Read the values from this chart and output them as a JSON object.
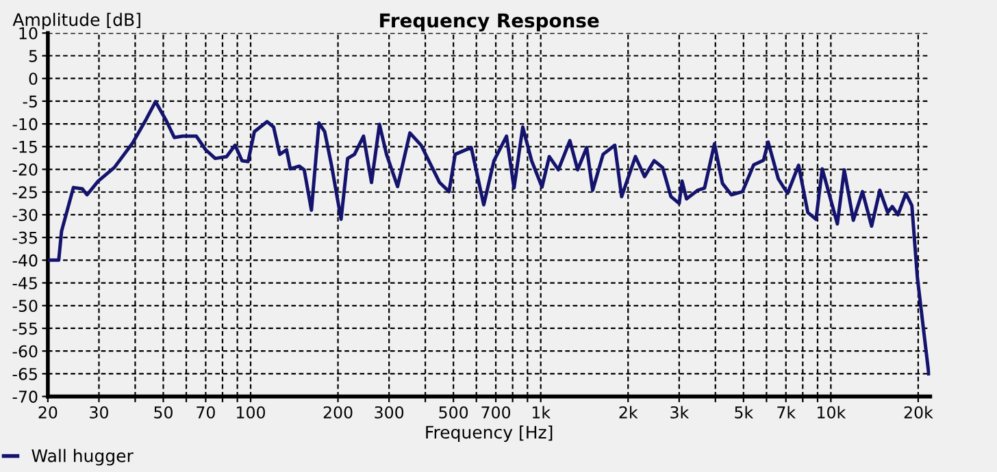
{
  "chart_data": {
    "type": "line",
    "title": "Frequency Response",
    "xlabel": "Frequency [Hz]",
    "ylabel": "Amplitude [dB]",
    "log": "x",
    "grid": true,
    "legend": "bottom left",
    "marker": "none",
    "line_style": "solid",
    "xlim": [
      20,
      22000
    ],
    "ylim": [
      -70,
      10
    ],
    "xticks": [
      20,
      30,
      {
        "value": 40,
        "label": null
      },
      50,
      {
        "value": 60,
        "label": null
      },
      70,
      {
        "value": 80,
        "label": null
      },
      {
        "value": 90,
        "label": null
      },
      100,
      200,
      300,
      {
        "value": 400,
        "label": null
      },
      500,
      {
        "value": 600,
        "label": null
      },
      700,
      {
        "value": 800,
        "label": null
      },
      {
        "value": 900,
        "label": null
      },
      {
        "value": 1000,
        "label": "1k"
      },
      {
        "value": 2000,
        "label": "2k"
      },
      {
        "value": 3000,
        "label": "3k"
      },
      {
        "value": 4000,
        "label": null
      },
      {
        "value": 5000,
        "label": "5k"
      },
      {
        "value": 6000,
        "label": null
      },
      {
        "value": 7000,
        "label": "7k"
      },
      {
        "value": 8000,
        "label": null
      },
      {
        "value": 9000,
        "label": null
      },
      {
        "value": 10000,
        "label": "10k"
      },
      {
        "value": 20000,
        "label": "20k"
      }
    ],
    "yticks": [
      10,
      5,
      0,
      -5,
      -10,
      -15,
      -20,
      -25,
      -30,
      -35,
      -40,
      -45,
      -50,
      -55,
      -60,
      -65,
      -70
    ],
    "series": [
      {
        "name": "Wall hugger",
        "color": "#14146e",
        "x": [
          20,
          21.8,
          22.3,
          24.5,
          26.3,
          27.3,
          29.8,
          33.9,
          39.2,
          43.8,
          47,
          51.2,
          54.6,
          58.3,
          65,
          70,
          75.5,
          82.6,
          88.4,
          93.4,
          98,
          103,
          114,
          120,
          126,
          133,
          137,
          147,
          153,
          162,
          172,
          180,
          190,
          205,
          216,
          228,
          245,
          261,
          278,
          294,
          321,
          354,
          387,
          448,
          483,
          507,
          576,
          636,
          690,
          762,
          809,
          867,
          930,
          1010,
          1070,
          1150,
          1260,
          1340,
          1440,
          1510,
          1640,
          1800,
          1900,
          2120,
          2280,
          2460,
          2630,
          2810,
          3000,
          3070,
          3180,
          3480,
          3670,
          3970,
          4230,
          4540,
          4960,
          5420,
          5860,
          6080,
          6590,
          7090,
          7740,
          8330,
          8890,
          9340,
          10530,
          11120,
          11950,
          12850,
          13820,
          14750,
          15700,
          16280,
          17040,
          18140,
          19020,
          19870,
          21750
        ],
        "values": [
          -40,
          -40,
          -33.6,
          -24,
          -24.3,
          -25.6,
          -22.6,
          -19.6,
          -14.2,
          -8.8,
          -5.1,
          -9.3,
          -13,
          -12.7,
          -12.7,
          -15.7,
          -17.6,
          -17.2,
          -14.7,
          -18.1,
          -18.3,
          -11.7,
          -9.5,
          -10.7,
          -16.7,
          -15.7,
          -19.9,
          -19.3,
          -20.1,
          -29,
          -9.8,
          -11.7,
          -19.1,
          -31,
          -17.6,
          -16.7,
          -12.7,
          -22.9,
          -10.1,
          -16.7,
          -23.8,
          -12,
          -14.7,
          -22.9,
          -24.9,
          -16.7,
          -15.2,
          -27.8,
          -18.1,
          -12.7,
          -24.1,
          -10.7,
          -18.1,
          -23.9,
          -17.2,
          -20.1,
          -13.7,
          -20.1,
          -15.2,
          -24.6,
          -16.7,
          -14.7,
          -26,
          -17.2,
          -21.6,
          -18.1,
          -19.6,
          -26,
          -27.5,
          -22.6,
          -26.5,
          -24.6,
          -24.1,
          -14.4,
          -23.1,
          -25.6,
          -24.9,
          -19,
          -18,
          -14,
          -22.1,
          -25.3,
          -19.1,
          -29.5,
          -31,
          -19.9,
          -32,
          -20.1,
          -31.2,
          -24.9,
          -32.5,
          -24.6,
          -29.5,
          -28.2,
          -30,
          -25.3,
          -28,
          -43.8,
          -65
        ]
      }
    ]
  }
}
